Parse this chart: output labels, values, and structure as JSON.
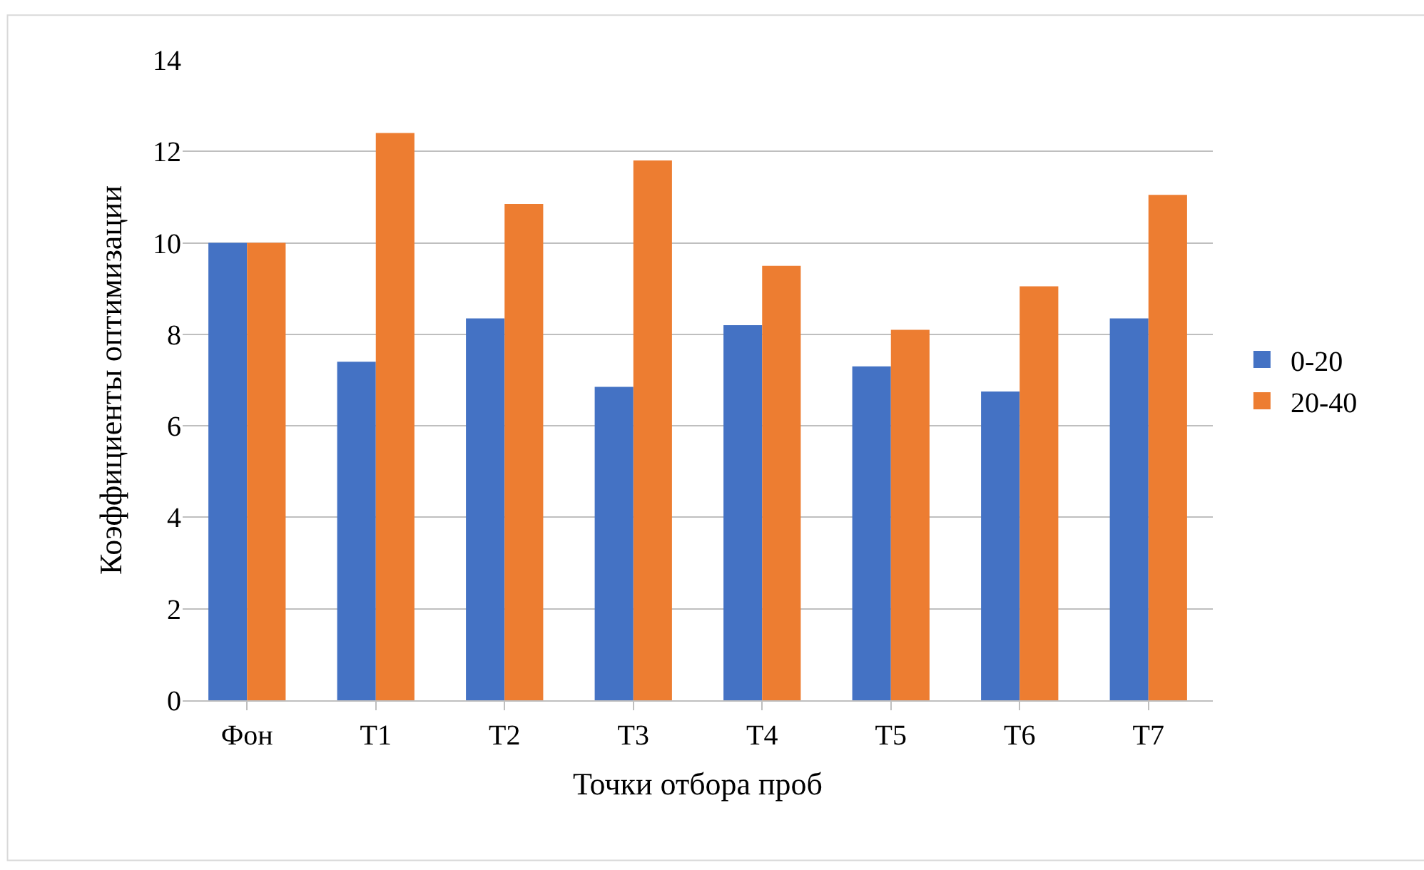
{
  "chart_data": {
    "type": "bar",
    "xlabel": "Точки отбора проб",
    "ylabel": "Коэффициенты оптимизации",
    "categories": [
      "Фон",
      "T1",
      "T2",
      "T3",
      "T4",
      "T5",
      "T6",
      "T7"
    ],
    "series": [
      {
        "name": "0-20",
        "color": "#4472c4",
        "values": [
          10,
          7.4,
          8.35,
          6.85,
          8.2,
          7.3,
          6.75,
          8.35
        ]
      },
      {
        "name": "20-40",
        "color": "#ed7d31",
        "values": [
          10,
          12.4,
          10.85,
          11.8,
          9.5,
          8.1,
          9.05,
          11.05
        ]
      }
    ],
    "ylim": [
      0,
      14
    ],
    "yticks": [
      0,
      2,
      4,
      6,
      8,
      10,
      12,
      14
    ],
    "grid": "y",
    "legend": "right"
  }
}
